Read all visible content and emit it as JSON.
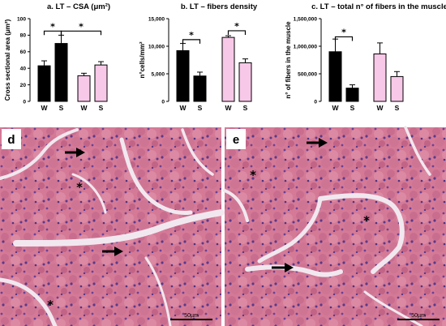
{
  "colors": {
    "W": "#000000",
    "S": "#f8c8e8",
    "tissue_base": "#d47a97",
    "tissue_dark": "#b25a7c",
    "nuclei": "#5a3a8a",
    "gap": "#f1e8ef"
  },
  "chart_data": [
    {
      "type": "bar",
      "title": "a. LT – CSA (μm²)",
      "ylabel": "Cross sectional area (μm²)",
      "xlabel": "",
      "ylim": [
        0,
        100
      ],
      "yticks": [
        0,
        20,
        40,
        60,
        80,
        100
      ],
      "ytick_labels": [
        "0",
        "20",
        "40",
        "60",
        "80",
        "100"
      ],
      "groups": [
        {
          "bars": [
            {
              "cat": "W",
              "color": "W",
              "value": 43,
              "err": 6
            },
            {
              "cat": "S",
              "color": "W",
              "value": 70,
              "err": 10
            }
          ]
        },
        {
          "bars": [
            {
              "cat": "W",
              "color": "S",
              "value": 31,
              "err": 3
            },
            {
              "cat": "S",
              "color": "S",
              "value": 44,
              "err": 4
            }
          ]
        }
      ],
      "significance": [
        {
          "label": "*",
          "from": [
            0,
            0
          ],
          "to": [
            0,
            1
          ],
          "y": 85
        },
        {
          "label": "*",
          "from": [
            0,
            1
          ],
          "to": [
            1,
            1
          ],
          "y": 85
        }
      ]
    },
    {
      "type": "bar",
      "title": "b. LT – fibers density",
      "ylabel": "n°cells/mm²",
      "xlabel": "",
      "ylim": [
        0,
        15000
      ],
      "yticks": [
        0,
        5000,
        10000,
        15000
      ],
      "ytick_labels": [
        "0",
        "5,000",
        "10,000",
        "15,000"
      ],
      "groups": [
        {
          "bars": [
            {
              "cat": "W",
              "color": "W",
              "value": 9200,
              "err": 1300
            },
            {
              "cat": "S",
              "color": "W",
              "value": 4600,
              "err": 700
            }
          ]
        },
        {
          "bars": [
            {
              "cat": "W",
              "color": "S",
              "value": 11600,
              "err": 300
            },
            {
              "cat": "S",
              "color": "S",
              "value": 7000,
              "err": 700
            }
          ]
        }
      ],
      "significance": [
        {
          "label": "*",
          "from": [
            0,
            0
          ],
          "to": [
            0,
            1
          ],
          "y": 11200
        },
        {
          "label": "*",
          "from": [
            1,
            0
          ],
          "to": [
            1,
            1
          ],
          "y": 12800
        }
      ]
    },
    {
      "type": "bar",
      "title": "c. LT – total n° of fibers in the muscle",
      "ylabel": "n° of fibers in the muscle",
      "xlabel": "",
      "ylim": [
        0,
        1500000
      ],
      "yticks": [
        0,
        500000,
        1000000,
        1500000
      ],
      "ytick_labels": [
        "0",
        "500,000",
        "1,000,000",
        "1,500,000"
      ],
      "groups": [
        {
          "bars": [
            {
              "cat": "W",
              "color": "W",
              "value": 900000,
              "err": 230000
            },
            {
              "cat": "S",
              "color": "W",
              "value": 240000,
              "err": 60000
            }
          ]
        },
        {
          "bars": [
            {
              "cat": "W",
              "color": "S",
              "value": 860000,
              "err": 200000
            },
            {
              "cat": "S",
              "color": "S",
              "value": 450000,
              "err": 90000
            }
          ]
        }
      ],
      "significance": [
        {
          "label": "*",
          "from": [
            0,
            0
          ],
          "to": [
            0,
            1
          ],
          "y": 1170000
        }
      ]
    }
  ],
  "micrographs": [
    {
      "letter": "d",
      "scale_label": "50µm",
      "asterisks": [
        "*",
        "*"
      ],
      "arrows": 2
    },
    {
      "letter": "e",
      "scale_label": "50µm",
      "asterisks": [
        "*",
        "*"
      ],
      "arrows": 2
    }
  ]
}
